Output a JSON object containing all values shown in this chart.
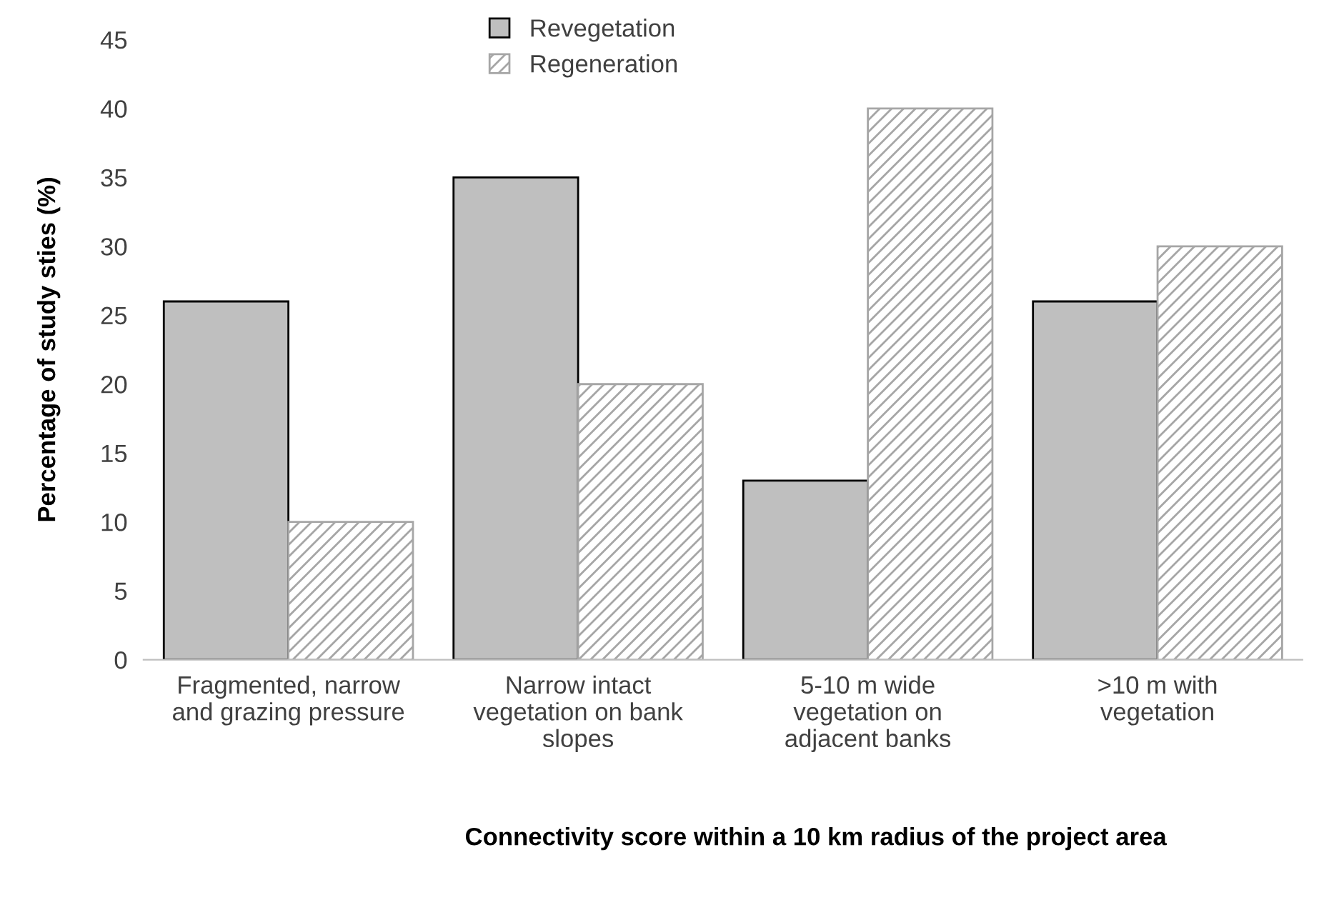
{
  "chart_data": {
    "type": "bar",
    "xlabel": "Connectivity score within a 10 km radius of the project area",
    "ylabel": "Percentage of study sties (%)",
    "categories": [
      "Fragmented, narrow\nand grazing pressure",
      "Narrow intact\nvegetation on bank\nslopes",
      "5-10 m wide\nvegetation on\nadjacent banks",
      ">10 m with\nvegetation"
    ],
    "series": [
      {
        "name": "Revegetation",
        "color": "#bfbfbf",
        "values": [
          26,
          35,
          13,
          26
        ]
      },
      {
        "name": "Regeneration",
        "color": "#a6a6a6",
        "values": [
          10,
          20,
          40,
          30
        ]
      }
    ],
    "ylim": [
      0,
      45
    ],
    "yticks": [
      0,
      5,
      10,
      15,
      20,
      25,
      30,
      35,
      40,
      45
    ],
    "grid": false,
    "legend": "top"
  }
}
